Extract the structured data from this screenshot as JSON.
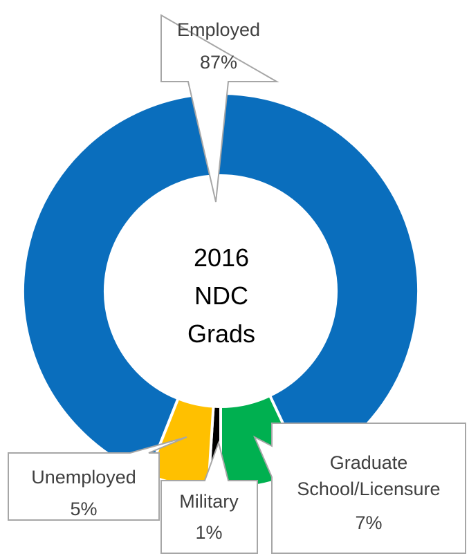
{
  "chart_data": {
    "type": "donut",
    "title": "2016 NDC Grads",
    "categories": [
      "Employed",
      "Graduate School/Licensure",
      "Military",
      "Unemployed"
    ],
    "values": [
      87,
      7,
      1,
      5
    ],
    "value_labels": [
      "87%",
      "7%",
      "1%",
      "5%"
    ],
    "colors": [
      "#0a6ebd",
      "#00b050",
      "#000000",
      "#ffc000"
    ]
  }
}
